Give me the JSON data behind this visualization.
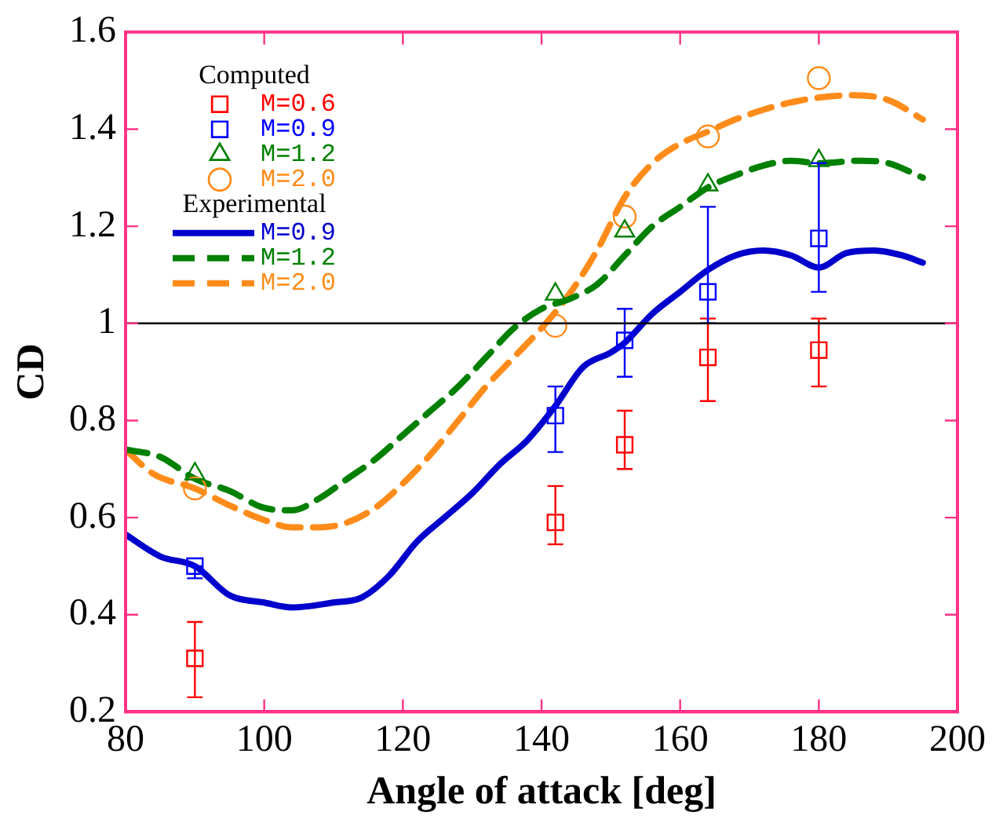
{
  "chart_data": {
    "type": "scatter",
    "xlabel": "Angle of attack [deg]",
    "ylabel": "CD",
    "legend_title": "Computed",
    "annotations": [
      "Experimental"
    ],
    "xlim": [
      80,
      200
    ],
    "xticks": [
      80,
      100,
      120,
      140,
      160,
      180,
      200
    ],
    "ylim": [
      0.2,
      1.6
    ],
    "yticks": [
      0.2,
      0.4,
      0.6,
      0.8,
      1,
      1.2,
      1.4,
      1.6
    ],
    "grid": false,
    "legend": "top left",
    "ref_lines": [
      {
        "axis": "y",
        "value": 1,
        "color": "#000000"
      }
    ],
    "series": [
      {
        "name": "M=0.6",
        "marker": "square",
        "color": "#ff0000",
        "x": [
          90,
          142,
          152,
          164,
          180
        ],
        "values": [
          0.31,
          0.59,
          0.75,
          0.93,
          0.945
        ],
        "errors": [
          [
            0.23,
            0.385
          ],
          [
            0.545,
            0.665
          ],
          [
            0.7,
            0.82
          ],
          [
            0.84,
            1.01
          ],
          [
            0.87,
            1.01
          ]
        ]
      },
      {
        "name": "M=0.9",
        "marker": "square",
        "color": "#0000ff",
        "x": [
          90,
          142,
          152,
          164,
          180
        ],
        "values": [
          0.5,
          0.81,
          0.965,
          1.065,
          1.175
        ],
        "errors": [
          [
            0.475,
            0.5
          ],
          [
            0.735,
            0.87
          ],
          [
            0.89,
            1.03
          ],
          [
            1,
            1.24
          ],
          [
            1.065,
            1.33
          ]
        ]
      },
      {
        "name": "M=1.2",
        "marker": "triangle",
        "color": "#008000",
        "x": [
          90,
          142,
          152,
          164,
          180
        ],
        "values": [
          0.69,
          1.06,
          1.19,
          1.285,
          1.335
        ]
      },
      {
        "name": "M=2.0",
        "marker": "circle",
        "color": "#ff8c1a",
        "x": [
          90,
          142,
          152,
          164,
          180
        ],
        "values": [
          0.66,
          0.995,
          1.22,
          1.385,
          1.505
        ]
      },
      {
        "name": "M=0.9",
        "type": "line",
        "marker": "none",
        "line_style": "solid",
        "color": "#0000cc",
        "x": [
          80,
          85,
          90,
          95,
          100,
          104,
          110,
          114,
          118,
          122,
          126,
          130,
          134,
          138,
          142,
          146,
          150,
          152,
          156,
          160,
          164,
          168,
          172,
          176,
          180,
          184,
          188,
          192,
          195
        ],
        "values": [
          0.565,
          0.52,
          0.5,
          0.44,
          0.425,
          0.415,
          0.425,
          0.435,
          0.48,
          0.55,
          0.6,
          0.65,
          0.71,
          0.76,
          0.83,
          0.91,
          0.94,
          0.96,
          1.02,
          1.065,
          1.11,
          1.14,
          1.15,
          1.14,
          1.115,
          1.145,
          1.15,
          1.14,
          1.125
        ]
      },
      {
        "name": "M=1.2",
        "type": "line",
        "marker": "none",
        "line_style": "dashed",
        "color": "#008000",
        "x": [
          80,
          85,
          90,
          95,
          100,
          104,
          108,
          112,
          116,
          120,
          124,
          128,
          132,
          136,
          140,
          144,
          148,
          152,
          156,
          160,
          164,
          168,
          172,
          176,
          180,
          186,
          190,
          195
        ],
        "values": [
          0.74,
          0.725,
          0.68,
          0.655,
          0.62,
          0.615,
          0.64,
          0.68,
          0.72,
          0.77,
          0.82,
          0.87,
          0.93,
          0.99,
          1.03,
          1.05,
          1.08,
          1.14,
          1.2,
          1.24,
          1.28,
          1.305,
          1.325,
          1.335,
          1.33,
          1.335,
          1.33,
          1.3
        ]
      },
      {
        "name": "M=2.0",
        "type": "line",
        "marker": "none",
        "line_style": "dashed",
        "color": "#ff8c1a",
        "x": [
          80,
          84,
          90,
          95,
          100,
          104,
          108,
          112,
          116,
          120,
          124,
          128,
          132,
          136,
          140,
          144,
          148,
          152,
          156,
          160,
          164,
          168,
          172,
          176,
          180,
          185,
          190,
          195
        ],
        "values": [
          0.74,
          0.69,
          0.66,
          0.625,
          0.595,
          0.58,
          0.58,
          0.59,
          0.62,
          0.67,
          0.73,
          0.8,
          0.87,
          0.93,
          0.99,
          1.06,
          1.15,
          1.26,
          1.33,
          1.37,
          1.395,
          1.42,
          1.44,
          1.455,
          1.465,
          1.47,
          1.46,
          1.42
        ]
      }
    ]
  }
}
